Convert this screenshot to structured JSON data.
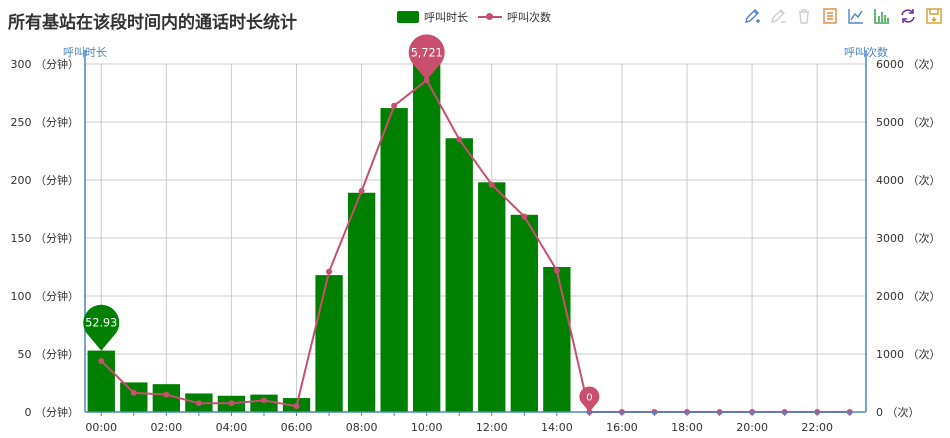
{
  "chart_data": {
    "type": "bar",
    "title": "所有基站在该段时间内的通话时长统计",
    "categories": [
      "00:00",
      "01:00",
      "02:00",
      "03:00",
      "04:00",
      "05:00",
      "06:00",
      "07:00",
      "08:00",
      "09:00",
      "10:00",
      "11:00",
      "12:00",
      "13:00",
      "14:00",
      "15:00",
      "16:00",
      "17:00",
      "18:00",
      "19:00",
      "20:00",
      "21:00",
      "22:00",
      "23:00"
    ],
    "x_tick_labels": [
      "00:00",
      "02:00",
      "04:00",
      "06:00",
      "08:00",
      "10:00",
      "12:00",
      "14:00",
      "16:00",
      "18:00",
      "20:00",
      "22:00"
    ],
    "series": [
      {
        "name": "呼叫时长",
        "type": "bar",
        "axis": "left",
        "color": "#008000",
        "values": [
          52.93,
          25.5,
          24,
          16,
          14,
          15,
          12,
          118,
          189,
          262,
          300,
          236,
          198,
          170,
          125,
          0,
          0,
          0,
          0,
          0,
          0,
          0,
          0,
          0
        ]
      },
      {
        "name": "呼叫次数",
        "type": "line",
        "axis": "right",
        "color": "#c8506e",
        "values": [
          880,
          330,
          300,
          150,
          150,
          200,
          100,
          2420,
          3810,
          5280,
          5721,
          4700,
          3920,
          3370,
          2440,
          0,
          0,
          0,
          0,
          0,
          0,
          0,
          0,
          0
        ]
      }
    ],
    "y_left": {
      "label": "呼叫时长",
      "min": 0,
      "max": 300,
      "step": 50,
      "tick_labels": [
        "0 （分钟）",
        "50 （分钟）",
        "100 （分钟）",
        "150 （分钟）",
        "200 （分钟）",
        "250 （分钟）",
        "300 （分钟）"
      ]
    },
    "y_right": {
      "label": "呼叫次数",
      "min": 0,
      "max": 6000,
      "step": 1000,
      "tick_labels": [
        "0 （次）",
        "1000 （次）",
        "2000 （次）",
        "3000 （次）",
        "4000 （次）",
        "5000 （次）",
        "6000 （次）"
      ]
    },
    "markers": [
      {
        "series": "呼叫时长",
        "category": "00:00",
        "label": "52.93",
        "value": 52.93
      },
      {
        "series": "呼叫次数",
        "category": "10:00",
        "label": "5,721",
        "value": 5721
      },
      {
        "series": "呼叫次数",
        "category": "15:00",
        "label": "0",
        "value": 0
      }
    ],
    "grid": true,
    "legend_position": "top-center"
  },
  "toolbox": [
    "pencil-icon",
    "eraser-icon",
    "trash-icon",
    "data-view-icon",
    "line-chart-icon",
    "bar-chart-icon",
    "restore-icon",
    "save-image-icon"
  ],
  "colors": {
    "bar": "#008000",
    "line": "#c8506e",
    "axis": "#4a86c8",
    "grid": "#cccccc",
    "toolbox": "#4a86c8"
  }
}
